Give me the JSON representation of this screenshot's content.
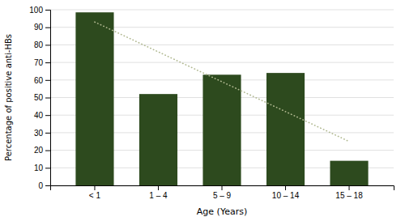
{
  "chart_data": {
    "type": "bar",
    "categories": [
      "< 1",
      "1 – 4",
      "5 – 9",
      "10 – 14",
      "15 – 18"
    ],
    "series": [
      {
        "type": "bar",
        "color": "#2d4a1e",
        "values": [
          98.5,
          52,
          63,
          64,
          14
        ]
      },
      {
        "type": "line",
        "color": "#b0b890",
        "line_style": "dotted",
        "x": [
          "< 1",
          "15 – 18"
        ],
        "values": [
          93,
          25
        ]
      }
    ],
    "xlabel": "Age (Years)",
    "ylabel": "Percentage of positive anti-HBs",
    "ylim": [
      0,
      100
    ],
    "yticks": [
      0,
      10,
      20,
      30,
      40,
      50,
      60,
      70,
      80,
      90,
      100
    ],
    "grid": true
  }
}
